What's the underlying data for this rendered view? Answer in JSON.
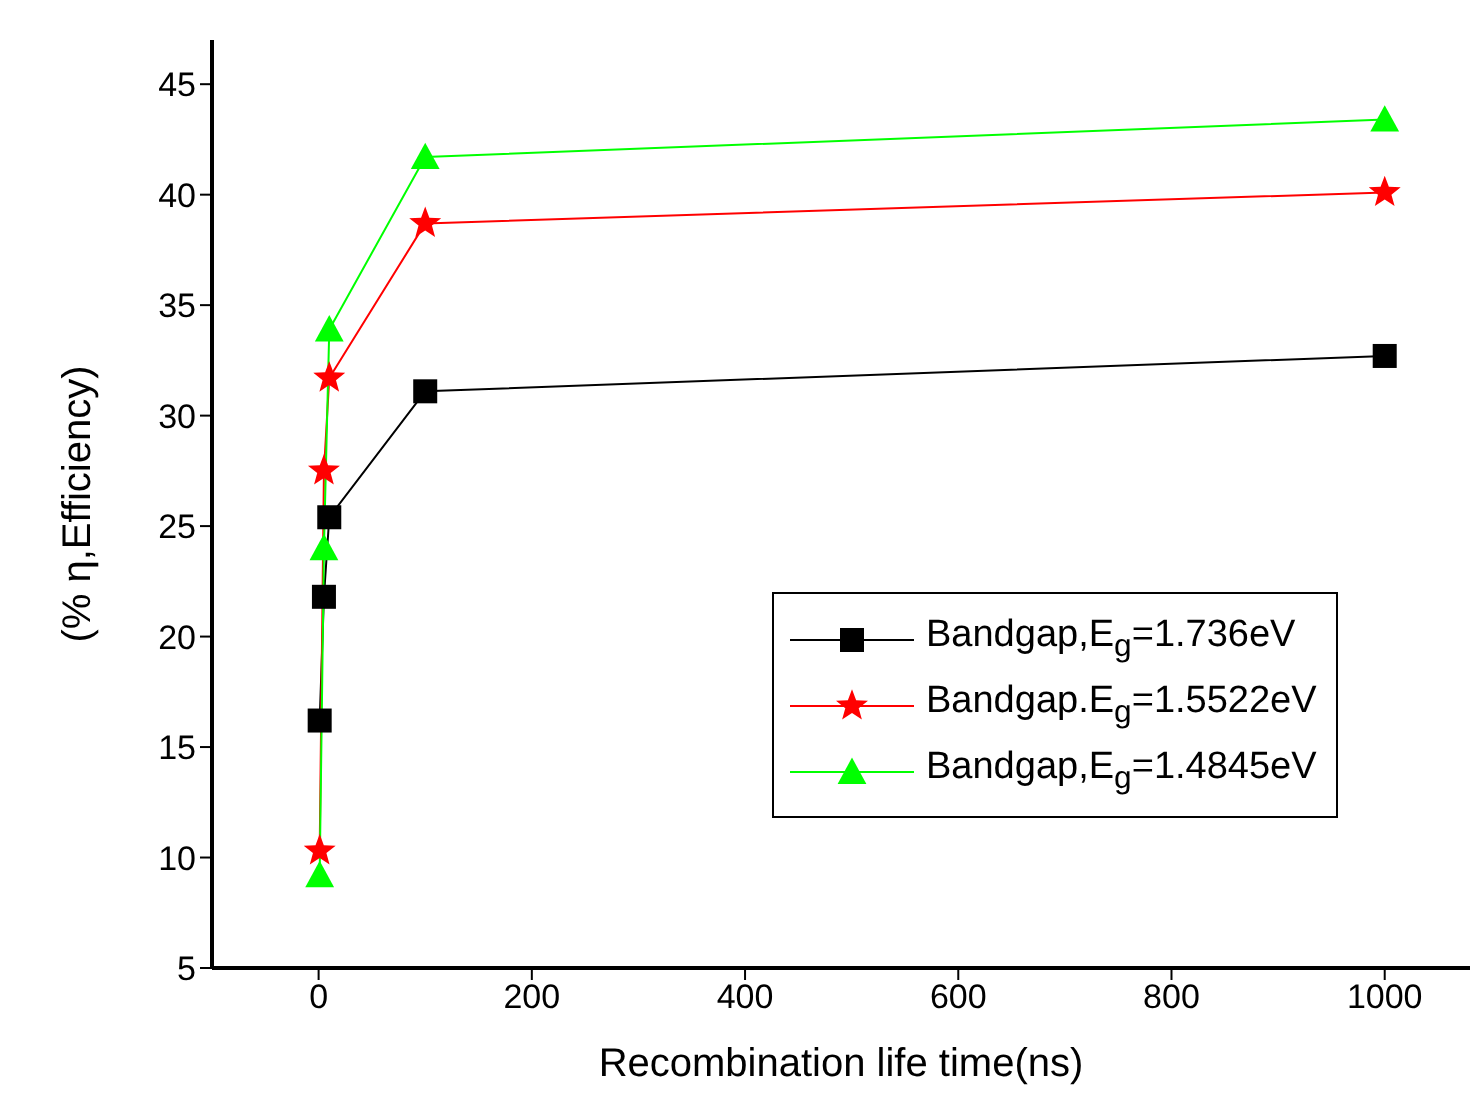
{
  "chart_data": {
    "type": "line",
    "xlabel": "Recombination life time(ns)",
    "ylabel": "(% η,Efficiency)",
    "xlim": [
      -100,
      1080
    ],
    "xticks": [
      0,
      200,
      400,
      600,
      800,
      1000
    ],
    "ylim": [
      5,
      47
    ],
    "yticks": [
      5,
      10,
      15,
      20,
      25,
      30,
      35,
      40,
      45
    ],
    "grid": false,
    "legend": "bottom right",
    "line_style": "solid",
    "series": [
      {
        "name": "Bandgap,E$_{g}$=1.736eV",
        "color": "#000000",
        "marker": "square",
        "x": [
          1,
          5,
          10,
          100,
          1000
        ],
        "values": [
          16.2,
          21.8,
          25.4,
          31.1,
          32.7
        ]
      },
      {
        "name": "Bandgap.E$_{g}$=1.5522eV",
        "color": "#ff0000",
        "marker": "star",
        "x": [
          1,
          5,
          10,
          100,
          1000
        ],
        "values": [
          10.3,
          27.5,
          31.7,
          38.7,
          40.1
        ]
      },
      {
        "name": "Bandgap,E$_{g}$=1.4845eV",
        "color": "#00ff00",
        "marker": "triangle",
        "x": [
          1,
          5,
          10,
          100,
          1000
        ],
        "values": [
          9.2,
          24,
          33.9,
          41.7,
          43.4
        ]
      }
    ]
  }
}
